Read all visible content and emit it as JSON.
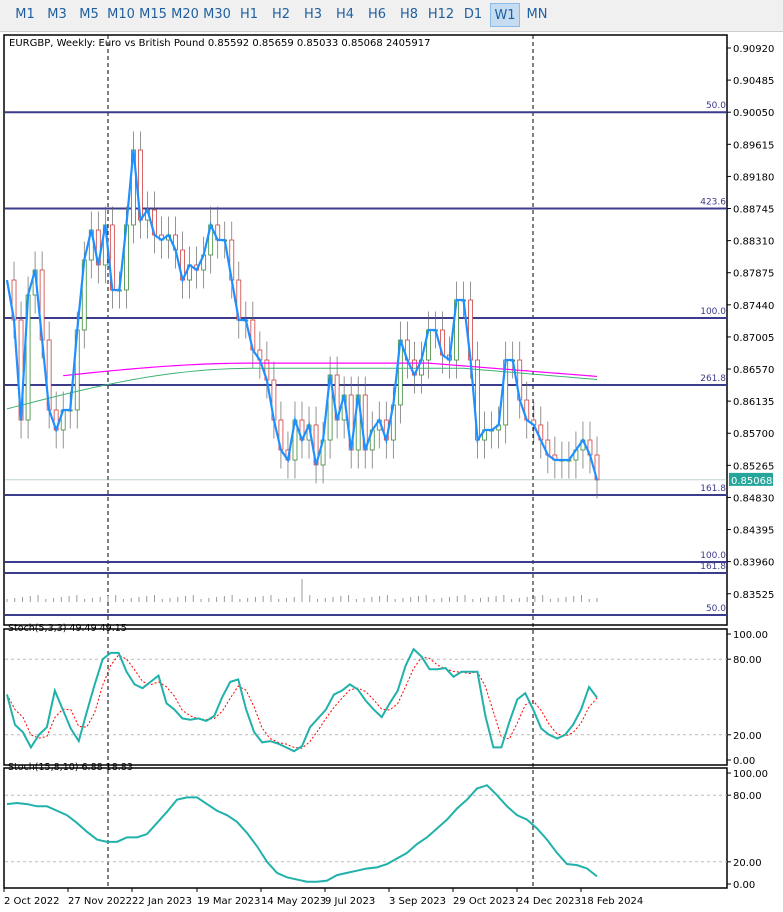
{
  "timeframes": [
    "M1",
    "M3",
    "M5",
    "M10",
    "M15",
    "M20",
    "M30",
    "H1",
    "H2",
    "H3",
    "H4",
    "H6",
    "H8",
    "H12",
    "D1",
    "W1",
    "MN"
  ],
  "active_timeframe": "W1",
  "header": "EURGBP, Weekly:  Euro vs British Pound  0.85592 0.85659 0.85033 0.85068  2405917",
  "price_ticks": [
    "0.90920",
    "0.90485",
    "0.90050",
    "0.89615",
    "0.89180",
    "0.88745",
    "0.88310",
    "0.87875",
    "0.87440",
    "0.87005",
    "0.86570",
    "0.86135",
    "0.85700",
    "0.85265",
    "0.84830",
    "0.84395",
    "0.83960",
    "0.83525"
  ],
  "current_price": "0.85068",
  "colors": {
    "line": "#1e90ff",
    "stoch": "#20b2aa",
    "signal": "#ff0000",
    "level": "#3c3c8c",
    "ma_green": "#3cb371",
    "ma_magenta": "#ff00ff",
    "price_badge": "#26a69a"
  },
  "fib_levels": [
    {
      "label": "50.0",
      "price": 0.9005
    },
    {
      "label": "423.6",
      "price": 0.88745
    },
    {
      "label": "100.0",
      "price": 0.87262
    },
    {
      "label": "261.8",
      "price": 0.86354
    },
    {
      "label": "161.8",
      "price": 0.84863
    },
    {
      "label": "100.0",
      "price": 0.83955
    },
    {
      "label": "161.8",
      "price": 0.83806
    },
    {
      "label": "50.0",
      "price": 0.83237
    }
  ],
  "closes": [
    0.87776,
    0.87234,
    0.85879,
    0.87573,
    0.87912,
    0.86963,
    0.86015,
    0.85744,
    0.86015,
    0.86015,
    0.87099,
    0.88047,
    0.88454,
    0.8798,
    0.88522,
    0.87641,
    0.87641,
    0.88522,
    0.89538,
    0.88589,
    0.88725,
    0.88386,
    0.88318,
    0.88386,
    0.88183,
    0.87776,
    0.8798,
    0.87912,
    0.88115,
    0.88522,
    0.88318,
    0.88318,
    0.87776,
    0.87234,
    0.87234,
    0.86828,
    0.86692,
    0.86421,
    0.85879,
    0.85473,
    0.85337,
    0.85879,
    0.85608,
    0.85812,
    0.8527,
    0.85608,
    0.86489,
    0.85879,
    0.86218,
    0.85473,
    0.86218,
    0.85473,
    0.85744,
    0.85879,
    0.85608,
    0.86083,
    0.86963,
    0.86692,
    0.86489,
    0.86692,
    0.87099,
    0.87099,
    0.8676,
    0.86692,
    0.87505,
    0.87505,
    0.86692,
    0.85608,
    0.85744,
    0.85744,
    0.85812,
    0.86692,
    0.86692,
    0.8615,
    0.85879,
    0.85812,
    0.85608,
    0.85405,
    0.85337,
    0.85337,
    0.85337,
    0.85473,
    0.85608,
    0.85405,
    0.85068
  ],
  "stoch1": {
    "label": "Stoch(5,3,3) 49.49 49.15",
    "levels": [
      "100.00",
      "80.00",
      "20.00",
      "0.00"
    ],
    "k": [
      52,
      28,
      22,
      10,
      20,
      26,
      55,
      40,
      25,
      15,
      38,
      60,
      80,
      85,
      85,
      70,
      60,
      57,
      62,
      67,
      45,
      40,
      33,
      32,
      33,
      31,
      35,
      50,
      62,
      64,
      40,
      22,
      14,
      15,
      13,
      10,
      7,
      11,
      26,
      33,
      40,
      52,
      55,
      60,
      56,
      47,
      40,
      34,
      45,
      55,
      75,
      88,
      82,
      72,
      72,
      73,
      66,
      70,
      70,
      70,
      35,
      10,
      10,
      30,
      48,
      53,
      40,
      25,
      20,
      17,
      20,
      28,
      40,
      58,
      49.49
    ]
  },
  "stoch2": {
    "label": "Stoch(15,8,10) 6.88 18.83",
    "levels": [
      "100.00",
      "80.00",
      "20.00",
      "0.00"
    ],
    "k": [
      72,
      73,
      72,
      70,
      70,
      66,
      62,
      55,
      47,
      40,
      38,
      38,
      42,
      42,
      45,
      55,
      65,
      76,
      78,
      78,
      72,
      66,
      62,
      56,
      46,
      34,
      20,
      10,
      6,
      4,
      2,
      2,
      3,
      8,
      10,
      12,
      14,
      15,
      18,
      23,
      28,
      36,
      42,
      50,
      58,
      68,
      76,
      86,
      89,
      80,
      70,
      62,
      58,
      50,
      40,
      28,
      18,
      17,
      14,
      6.88
    ]
  },
  "dates": [
    "2 Oct 2022",
    "27 Nov 2022",
    "22 Jan 2023",
    "19 Mar 2023",
    "14 May 2023",
    "9 Jul 2023",
    "3 Sep 2023",
    "29 Oct 2023",
    "24 Dec 2023",
    "18 Feb 2024"
  ]
}
